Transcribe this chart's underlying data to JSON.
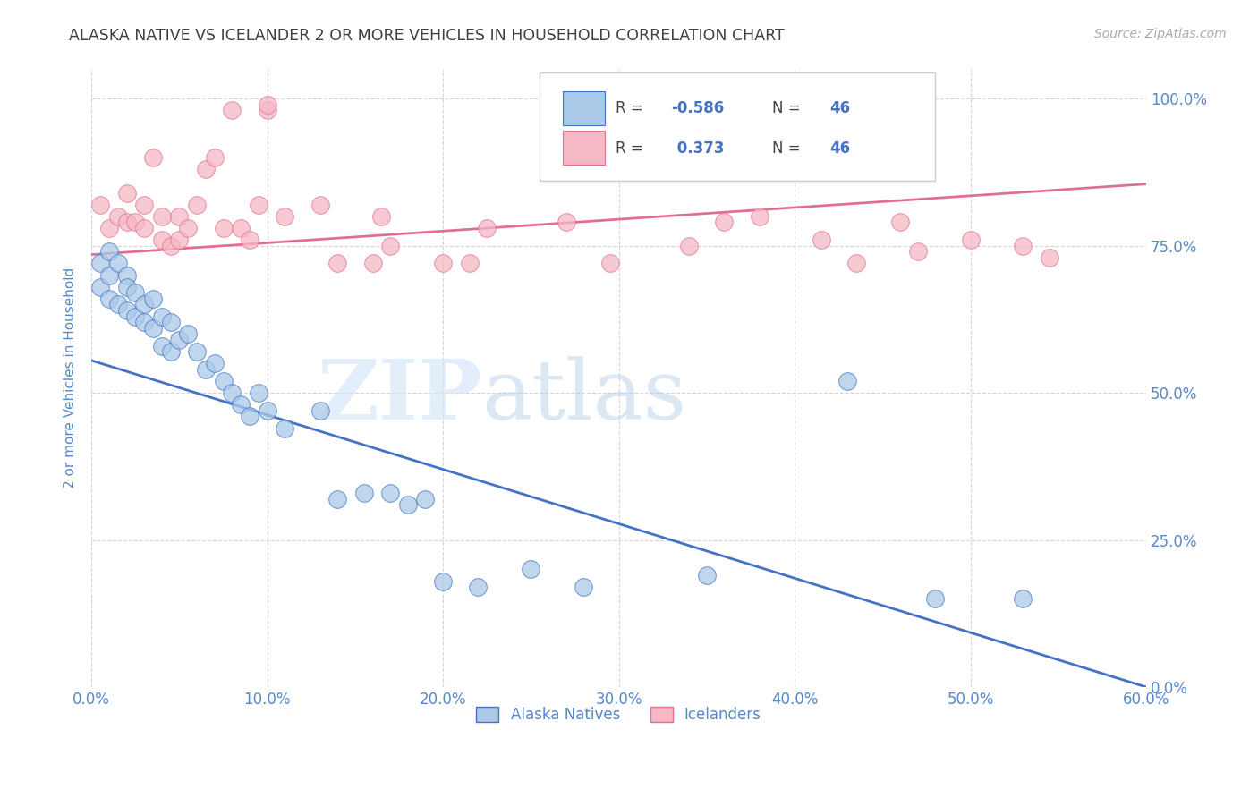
{
  "title": "ALASKA NATIVE VS ICELANDER 2 OR MORE VEHICLES IN HOUSEHOLD CORRELATION CHART",
  "source": "Source: ZipAtlas.com",
  "ylabel": "2 or more Vehicles in Household",
  "xlim": [
    0.0,
    0.6
  ],
  "ylim": [
    0.0,
    1.05
  ],
  "xtick_labels": [
    "0.0%",
    "10.0%",
    "20.0%",
    "30.0%",
    "40.0%",
    "50.0%",
    "60.0%"
  ],
  "xtick_values": [
    0.0,
    0.1,
    0.2,
    0.3,
    0.4,
    0.5,
    0.6
  ],
  "ytick_labels_right": [
    "0.0%",
    "25.0%",
    "50.0%",
    "75.0%",
    "100.0%"
  ],
  "ytick_values": [
    0.0,
    0.25,
    0.5,
    0.75,
    1.0
  ],
  "legend_label1": "Alaska Natives",
  "legend_label2": "Icelanders",
  "r1": "-0.586",
  "n1": "46",
  "r2": "0.373",
  "n2": "46",
  "color_blue": "#aac9e8",
  "color_pink": "#f5b8c4",
  "line_blue": "#4472c4",
  "line_pink": "#e07090",
  "watermark_zip": "ZIP",
  "watermark_atlas": "atlas",
  "background_color": "#ffffff",
  "grid_color": "#cccccc",
  "title_color": "#404040",
  "axis_label_color": "#5588cc",
  "blue_x": [
    0.005,
    0.005,
    0.01,
    0.01,
    0.01,
    0.015,
    0.015,
    0.02,
    0.02,
    0.02,
    0.025,
    0.025,
    0.03,
    0.03,
    0.035,
    0.035,
    0.04,
    0.04,
    0.045,
    0.045,
    0.05,
    0.055,
    0.06,
    0.065,
    0.07,
    0.075,
    0.08,
    0.085,
    0.09,
    0.095,
    0.1,
    0.11,
    0.13,
    0.14,
    0.155,
    0.17,
    0.18,
    0.19,
    0.2,
    0.22,
    0.25,
    0.28,
    0.35,
    0.43,
    0.48,
    0.53
  ],
  "blue_y": [
    0.72,
    0.68,
    0.74,
    0.7,
    0.66,
    0.72,
    0.65,
    0.7,
    0.68,
    0.64,
    0.67,
    0.63,
    0.65,
    0.62,
    0.66,
    0.61,
    0.63,
    0.58,
    0.62,
    0.57,
    0.59,
    0.6,
    0.57,
    0.54,
    0.55,
    0.52,
    0.5,
    0.48,
    0.46,
    0.5,
    0.47,
    0.44,
    0.47,
    0.32,
    0.33,
    0.33,
    0.31,
    0.32,
    0.18,
    0.17,
    0.2,
    0.17,
    0.19,
    0.52,
    0.15,
    0.15
  ],
  "pink_x": [
    0.005,
    0.01,
    0.015,
    0.02,
    0.02,
    0.025,
    0.03,
    0.03,
    0.035,
    0.04,
    0.04,
    0.045,
    0.05,
    0.05,
    0.055,
    0.06,
    0.065,
    0.07,
    0.075,
    0.08,
    0.085,
    0.09,
    0.095,
    0.1,
    0.1,
    0.11,
    0.13,
    0.14,
    0.16,
    0.165,
    0.17,
    0.2,
    0.215,
    0.225,
    0.27,
    0.295,
    0.34,
    0.36,
    0.38,
    0.415,
    0.435,
    0.46,
    0.47,
    0.5,
    0.53,
    0.545
  ],
  "pink_y": [
    0.82,
    0.78,
    0.8,
    0.84,
    0.79,
    0.79,
    0.82,
    0.78,
    0.9,
    0.76,
    0.8,
    0.75,
    0.8,
    0.76,
    0.78,
    0.82,
    0.88,
    0.9,
    0.78,
    0.98,
    0.78,
    0.76,
    0.82,
    0.98,
    0.99,
    0.8,
    0.82,
    0.72,
    0.72,
    0.8,
    0.75,
    0.72,
    0.72,
    0.78,
    0.79,
    0.72,
    0.75,
    0.79,
    0.8,
    0.76,
    0.72,
    0.79,
    0.74,
    0.76,
    0.75,
    0.73
  ],
  "blue_line_x0": 0.0,
  "blue_line_y0": 0.555,
  "blue_line_x1": 0.6,
  "blue_line_y1": 0.0,
  "pink_line_x0": 0.0,
  "pink_line_y0": 0.735,
  "pink_line_x1": 0.6,
  "pink_line_y1": 0.855
}
